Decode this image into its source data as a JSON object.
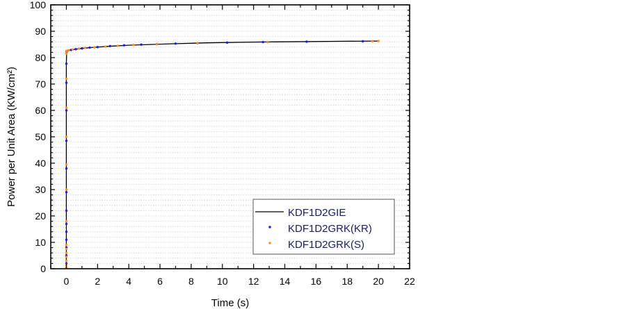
{
  "chart_data": {
    "type": "line",
    "title": "",
    "xlabel": "Time (s)",
    "ylabel": "Power per Unit Area  (KW/cm²)",
    "xlim": [
      -1,
      22
    ],
    "ylim": [
      0,
      100
    ],
    "xticks": [
      0,
      2,
      4,
      6,
      8,
      10,
      12,
      14,
      16,
      18,
      20,
      22
    ],
    "yticks": [
      0,
      10,
      20,
      30,
      40,
      50,
      60,
      70,
      80,
      90,
      100
    ],
    "grid": true,
    "legend_position": "bottom-right",
    "series": [
      {
        "name": "KDF1D2GIE",
        "style": "line",
        "color": "#000000",
        "x": [
          0,
          0,
          0.02,
          0.1,
          0.3,
          0.6,
          1,
          1.5,
          2,
          3,
          4,
          5,
          6,
          7,
          8,
          9,
          10,
          12,
          14,
          16,
          18,
          20
        ],
        "y": [
          0,
          78,
          82.3,
          82.6,
          82.9,
          83.2,
          83.5,
          83.8,
          84.0,
          84.4,
          84.7,
          84.9,
          85.1,
          85.3,
          85.45,
          85.6,
          85.7,
          85.9,
          86.0,
          86.1,
          86.2,
          86.3
        ]
      },
      {
        "name": "KDF1D2GRK(KR)",
        "style": "scatter",
        "color": "#1a1aff",
        "x": [
          0,
          0,
          0,
          0,
          0,
          0,
          0,
          0,
          0,
          0,
          0,
          0,
          0,
          0,
          0.05,
          0.3,
          0.6,
          1,
          1.5,
          2,
          2.8,
          3.7,
          4.8,
          5.8,
          7,
          8.4,
          10.3,
          12.6,
          15.4,
          19
        ],
        "y": [
          2,
          5,
          8,
          11,
          14,
          17,
          22,
          29,
          38,
          48.5,
          60,
          70.5,
          77.7,
          82,
          82.5,
          82.9,
          83.2,
          83.5,
          83.8,
          84.0,
          84.4,
          84.7,
          84.95,
          85.1,
          85.3,
          85.45,
          85.7,
          85.9,
          86.05,
          86.2
        ]
      },
      {
        "name": "KDF1D2GRK(S)",
        "style": "scatter",
        "color": "#ff8c1a",
        "x": [
          0,
          0,
          0,
          0,
          0,
          0,
          0,
          0,
          0,
          0,
          0,
          0,
          0,
          0,
          0,
          0.02,
          0.15,
          0.4,
          0.8,
          1.2,
          1.8,
          2.5,
          3.3,
          4.3,
          5.8,
          8.4,
          12.9,
          19.6,
          20
        ],
        "y": [
          0.5,
          1.5,
          3,
          4.5,
          6,
          7.5,
          9,
          18,
          30,
          39.5,
          50,
          61,
          72,
          81.5,
          82.3,
          82.6,
          82.8,
          83.1,
          83.4,
          83.7,
          83.9,
          84.2,
          84.5,
          84.8,
          85.1,
          85.45,
          85.9,
          86.25,
          86.3
        ]
      }
    ]
  }
}
